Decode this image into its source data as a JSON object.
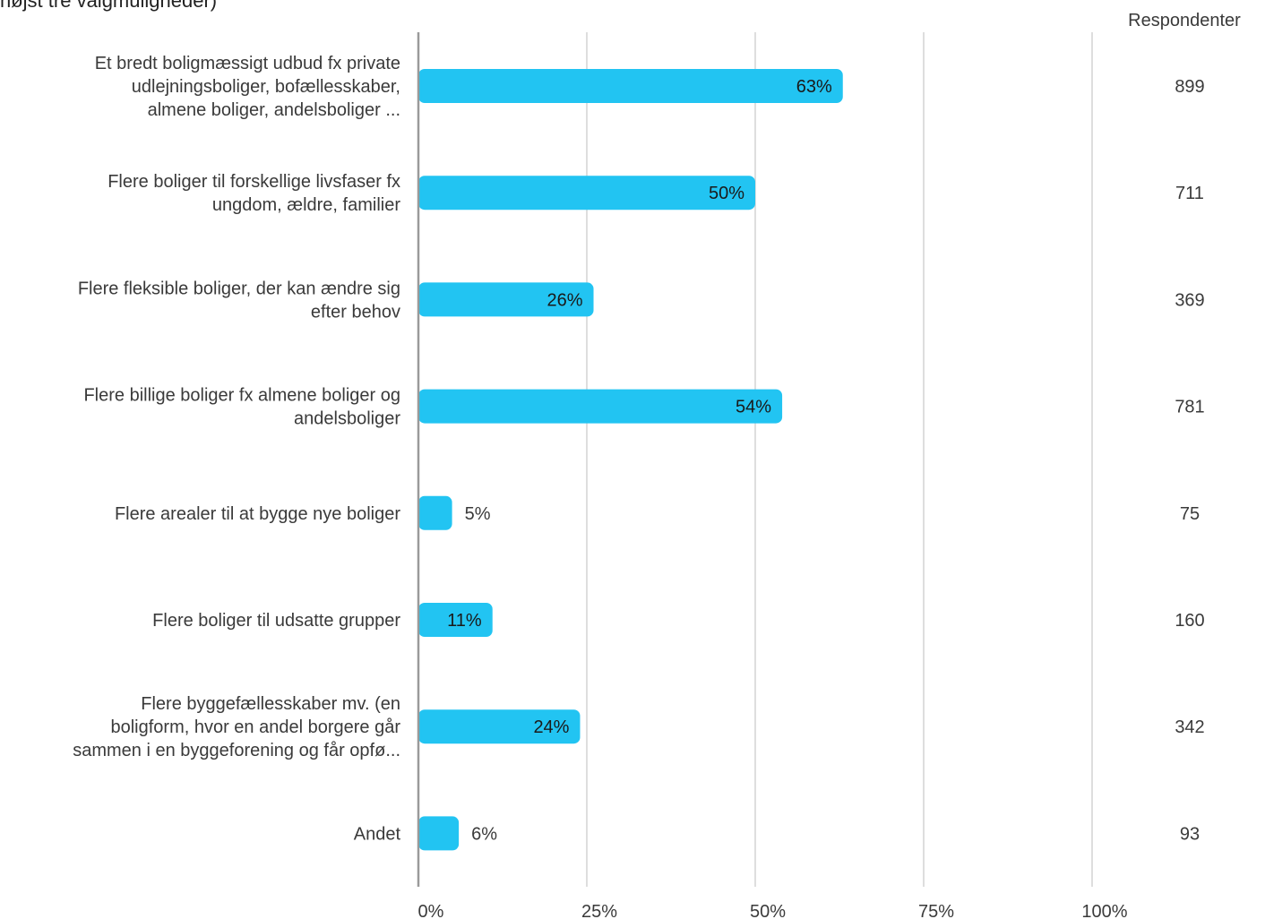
{
  "header": {
    "title_fragment": "højst tre valgmuligheder)",
    "count_column_label": "Respondenter"
  },
  "chart_data": {
    "type": "bar",
    "orientation": "horizontal",
    "title": "højst tre valgmuligheder)",
    "xlabel": "",
    "ylabel": "",
    "xlim": [
      0,
      100
    ],
    "x_ticks": [
      0,
      25,
      50,
      75,
      100
    ],
    "x_tick_labels": [
      "0%",
      "25%",
      "50%",
      "75%",
      "100%"
    ],
    "grid": true,
    "bar_color": "#22c4f2",
    "categories": [
      "Et bredt boligmæssigt udbud fx private udlejningsboliger, bofællesskaber, almene boliger, andelsboliger ...",
      "Flere boliger til forskellige livsfaser fx ungdom, ældre, familier",
      "Flere fleksible boliger, der kan ændre sig efter behov",
      "Flere billige boliger fx almene boliger og andelsboliger",
      "Flere arealer til at bygge nye boliger",
      "Flere boliger til udsatte grupper",
      "Flere byggefællesskaber mv. (en boligform, hvor en andel borgere går sammen i en byggeforening og får opfø...",
      "Andet"
    ],
    "category_lines": [
      [
        "Et bredt boligmæssigt udbud fx private",
        "udlejningsboliger, bofællesskaber,",
        "almene boliger, andelsboliger ..."
      ],
      [
        "Flere boliger til forskellige livsfaser fx",
        "ungdom, ældre, familier"
      ],
      [
        "Flere fleksible boliger, der kan ændre sig",
        "efter behov"
      ],
      [
        "Flere billige boliger fx almene boliger og",
        "andelsboliger"
      ],
      [
        "Flere arealer til at bygge nye boliger"
      ],
      [
        "Flere boliger til udsatte grupper"
      ],
      [
        "Flere byggefællesskaber mv. (en",
        "boligform, hvor en andel borgere går",
        "sammen i en byggeforening og får opfø..."
      ],
      [
        "Andet"
      ]
    ],
    "values": [
      63,
      50,
      26,
      54,
      5,
      11,
      24,
      6
    ],
    "value_labels": [
      "63%",
      "50%",
      "26%",
      "54%",
      "5%",
      "11%",
      "24%",
      "6%"
    ],
    "respondents": [
      899,
      711,
      369,
      781,
      75,
      160,
      342,
      93
    ],
    "respondents_header": "Respondenter"
  }
}
